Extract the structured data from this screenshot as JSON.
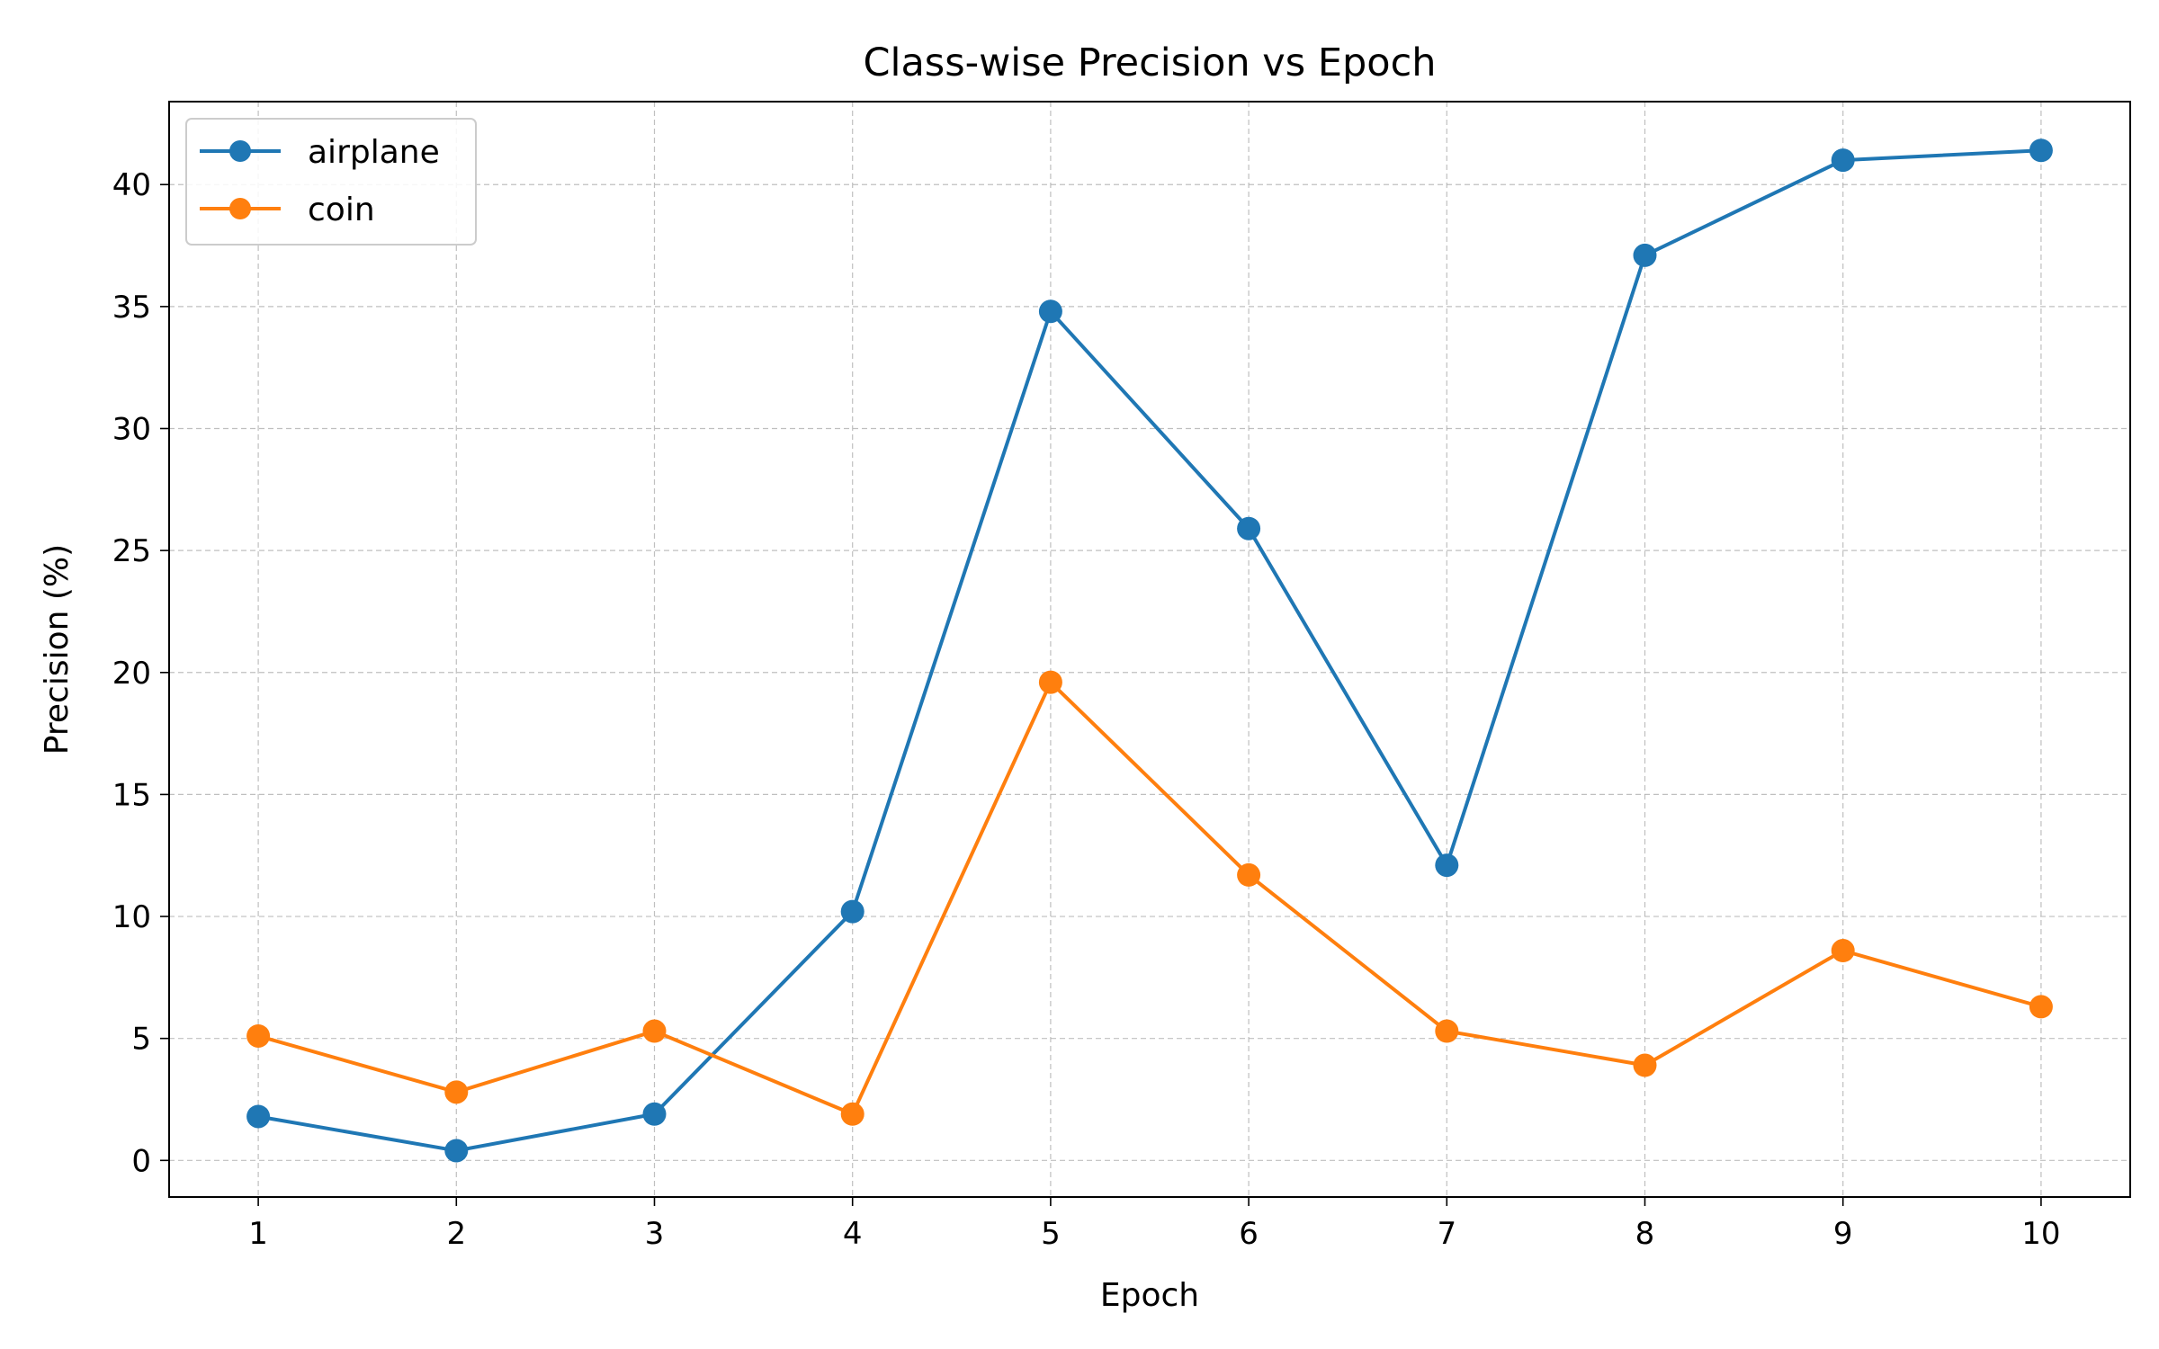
{
  "chart_data": {
    "type": "line",
    "title": "Class-wise Precision vs Epoch",
    "xlabel": "Epoch",
    "ylabel": "Precision (%)",
    "x": [
      1,
      2,
      3,
      4,
      5,
      6,
      7,
      8,
      9,
      10
    ],
    "xlim": [
      0.55,
      10.45
    ],
    "ylim": [
      -1.5,
      43.4
    ],
    "xticks": [
      "1",
      "2",
      "3",
      "4",
      "5",
      "6",
      "7",
      "8",
      "9",
      "10"
    ],
    "yticks": [
      "0",
      "5",
      "10",
      "15",
      "20",
      "25",
      "30",
      "35",
      "40"
    ],
    "grid": true,
    "legend_position": "top-left",
    "series": [
      {
        "name": "airplane",
        "color": "#1f77b4",
        "values": [
          1.8,
          0.4,
          1.9,
          10.2,
          34.8,
          25.9,
          12.1,
          37.1,
          41.0,
          41.4
        ]
      },
      {
        "name": "coin",
        "color": "#ff7f0e",
        "values": [
          5.1,
          2.8,
          5.3,
          1.9,
          19.6,
          11.7,
          5.3,
          3.9,
          8.6,
          6.3
        ]
      }
    ]
  }
}
